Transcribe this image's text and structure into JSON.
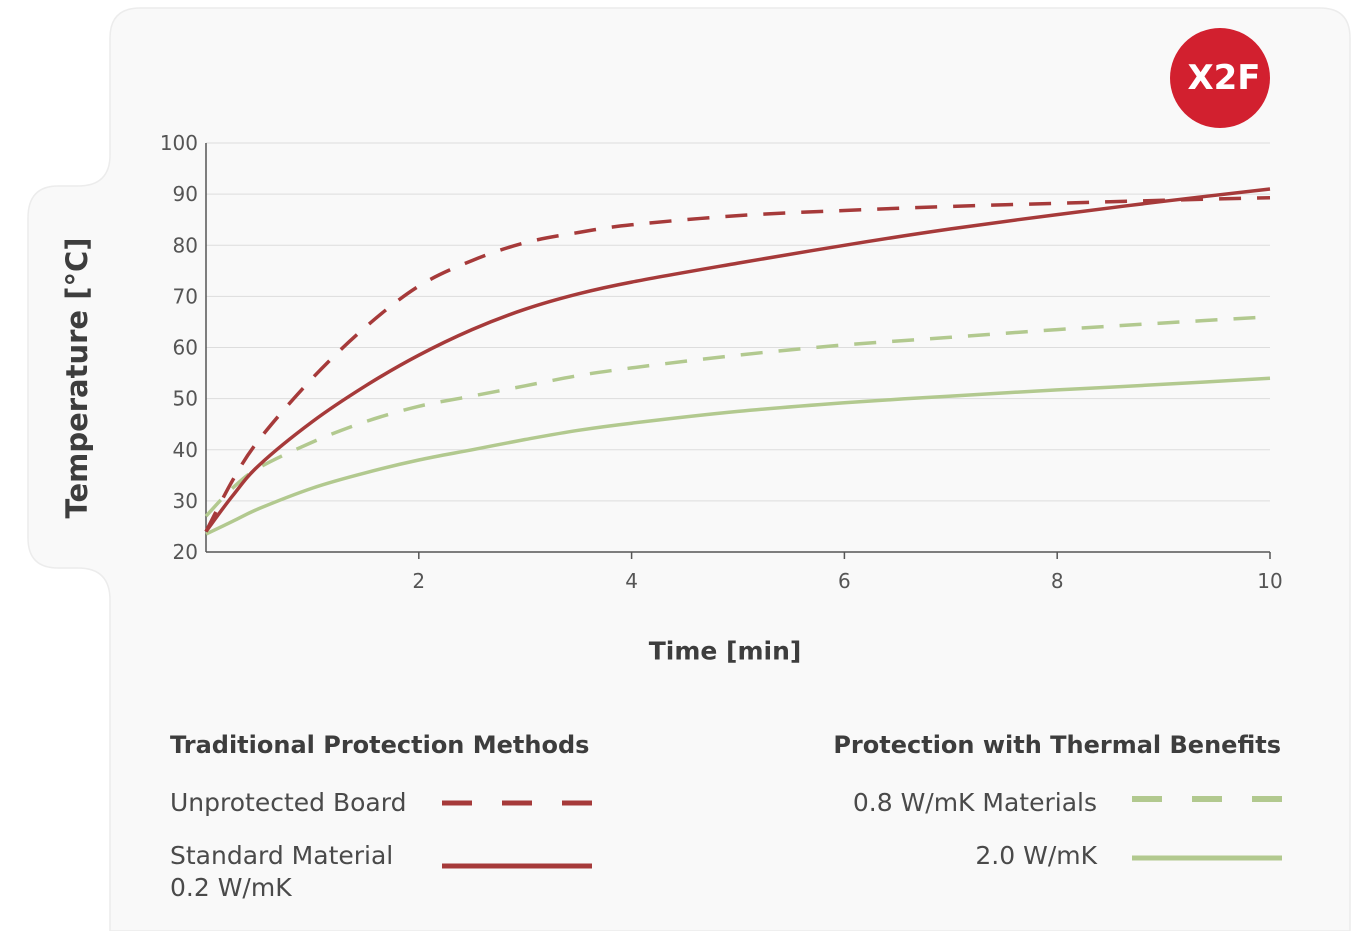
{
  "logo": {
    "text": "X2F",
    "color": "#d2202f"
  },
  "colors": {
    "red": "#a63a3a",
    "green": "#b2c98f",
    "grid": "#dddddd",
    "card": "#f9f9f9"
  },
  "chart_data": {
    "type": "line",
    "xlabel": "Time [min]",
    "ylabel": "Temperature [°C]",
    "xlim": [
      0,
      10
    ],
    "ylim": [
      20,
      100
    ],
    "xticks": [
      2,
      4,
      6,
      8,
      10
    ],
    "yticks": [
      20,
      30,
      40,
      50,
      60,
      70,
      80,
      90,
      100
    ],
    "grid": "horizontal",
    "legend_groups": [
      {
        "title": "Traditional Protection Methods",
        "entries": [
          {
            "label_lines": [
              "Unprotected Board"
            ],
            "series": 0
          },
          {
            "label_lines": [
              "Standard Material",
              "0.2 W/mK"
            ],
            "series": 1
          }
        ]
      },
      {
        "title": "Protection with Thermal Benefits",
        "entries": [
          {
            "label_lines": [
              "0.8 W/mK Materials"
            ],
            "series": 2
          },
          {
            "label_lines": [
              "2.0 W/mK"
            ],
            "series": 3
          }
        ]
      }
    ],
    "series": [
      {
        "name": "Unprotected Board",
        "color": "#a63a3a",
        "dashed": true,
        "x": [
          0,
          0.25,
          0.5,
          1.0,
          1.5,
          2.0,
          2.5,
          3.0,
          3.5,
          4.0,
          5.0,
          6.0,
          7.0,
          8.0,
          9.0,
          10.0
        ],
        "y": [
          24,
          34,
          42,
          54,
          64,
          72,
          77,
          80.5,
          82.5,
          84,
          85.8,
          86.8,
          87.6,
          88.2,
          88.8,
          89.3
        ]
      },
      {
        "name": "Standard Material 0.2 W/mK",
        "color": "#a63a3a",
        "dashed": false,
        "x": [
          0,
          0.25,
          0.5,
          1.0,
          1.5,
          2.0,
          2.5,
          3.0,
          3.5,
          4.0,
          5.0,
          6.0,
          7.0,
          8.0,
          9.0,
          10.0
        ],
        "y": [
          24,
          31,
          37,
          45.5,
          52.5,
          58.5,
          63.5,
          67.5,
          70.5,
          72.8,
          76.5,
          80,
          83.2,
          86,
          88.6,
          91
        ]
      },
      {
        "name": "0.8 W/mK Materials",
        "color": "#b2c98f",
        "dashed": true,
        "x": [
          0,
          0.25,
          0.5,
          1.0,
          1.5,
          2.0,
          2.5,
          3.0,
          3.5,
          4.0,
          5.0,
          6.0,
          7.0,
          8.0,
          9.0,
          10.0
        ],
        "y": [
          27,
          32.5,
          36.5,
          41.5,
          45.5,
          48.5,
          50.5,
          52.5,
          54.5,
          56,
          58.5,
          60.5,
          62,
          63.5,
          64.8,
          66
        ]
      },
      {
        "name": "2.0 W/mK",
        "color": "#b2c98f",
        "dashed": false,
        "x": [
          0,
          0.25,
          0.5,
          1.0,
          1.5,
          2.0,
          2.5,
          3.0,
          3.5,
          4.0,
          5.0,
          6.0,
          7.0,
          8.0,
          9.0,
          10.0
        ],
        "y": [
          23.5,
          26,
          28.5,
          32.5,
          35.5,
          38,
          40,
          42,
          43.8,
          45.2,
          47.5,
          49.2,
          50.5,
          51.7,
          52.8,
          54
        ]
      }
    ]
  }
}
